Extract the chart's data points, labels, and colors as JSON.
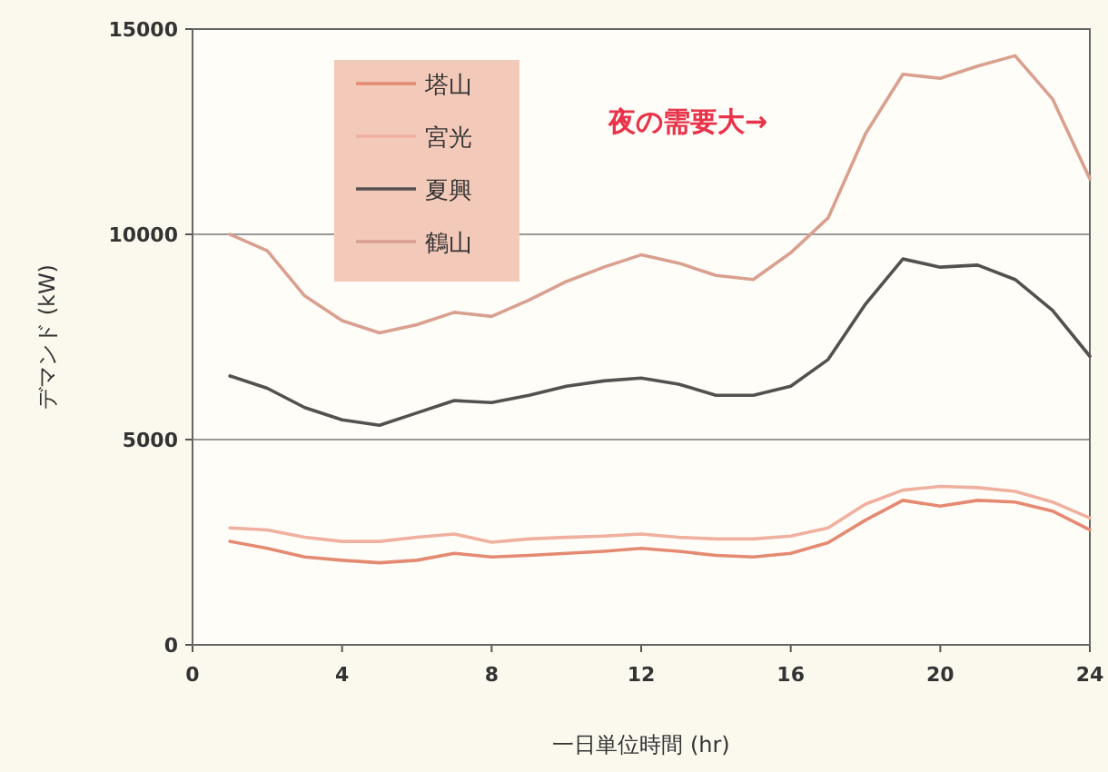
{
  "chart_data": {
    "type": "line",
    "xlabel": "一日単位時間 (hr)",
    "ylabel": "デマンド (kW)",
    "x": [
      1,
      2,
      3,
      4,
      5,
      6,
      7,
      8,
      9,
      10,
      11,
      12,
      13,
      14,
      15,
      16,
      17,
      18,
      19,
      20,
      21,
      22,
      23,
      24
    ],
    "xlim": [
      0,
      24
    ],
    "xticks": [
      0,
      4,
      8,
      12,
      16,
      20,
      24
    ],
    "ylim": [
      0,
      15000
    ],
    "yticks": [
      0,
      5000,
      10000,
      15000
    ],
    "grid": "y",
    "legend": "top left",
    "marker": "none",
    "line_style": "solid",
    "annotations": [
      "夜の需要大→"
    ],
    "series": [
      {
        "name": "塔山",
        "color": "#e58a72",
        "values": [
          2520,
          2350,
          2140,
          2060,
          2000,
          2060,
          2230,
          2140,
          2180,
          2230,
          2280,
          2350,
          2280,
          2180,
          2140,
          2230,
          2490,
          3040,
          3520,
          3380,
          3520,
          3480,
          3260,
          2800
        ]
      },
      {
        "name": "宮光",
        "color": "#f0b0a0",
        "values": [
          2850,
          2800,
          2620,
          2520,
          2520,
          2620,
          2700,
          2500,
          2580,
          2620,
          2650,
          2700,
          2620,
          2580,
          2580,
          2650,
          2850,
          3430,
          3770,
          3860,
          3830,
          3740,
          3480,
          3090
        ]
      },
      {
        "name": "夏興",
        "color": "#555050",
        "values": [
          6550,
          6250,
          5780,
          5480,
          5350,
          5650,
          5950,
          5900,
          6080,
          6300,
          6430,
          6500,
          6350,
          6080,
          6080,
          6300,
          6950,
          8300,
          9400,
          9200,
          9250,
          8900,
          8150,
          7030
        ]
      },
      {
        "name": "鶴山",
        "color": "#d9a090",
        "values": [
          10000,
          9600,
          8500,
          7900,
          7600,
          7800,
          8100,
          8000,
          8400,
          8850,
          9200,
          9500,
          9300,
          9000,
          8900,
          9550,
          10400,
          12450,
          13900,
          13800,
          14100,
          14350,
          13300,
          11350
        ]
      }
    ]
  }
}
